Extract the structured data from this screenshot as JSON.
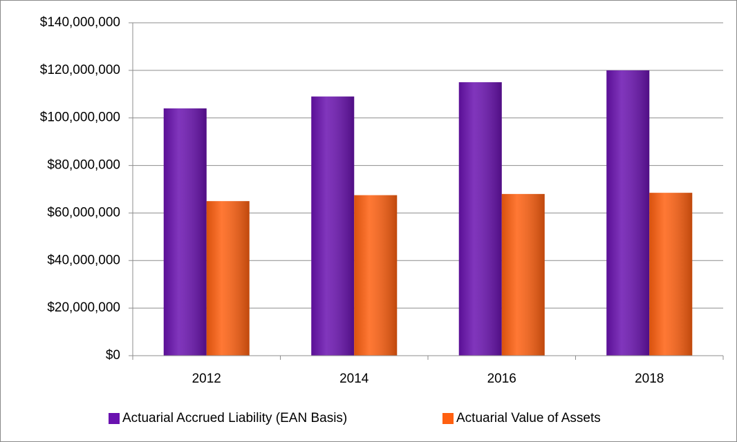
{
  "chart_data": {
    "type": "bar",
    "categories": [
      "2012",
      "2014",
      "2016",
      "2018"
    ],
    "series": [
      {
        "name": "Actuarial Accrued Liability (EAN Basis)",
        "color": "#6a12b0",
        "values": [
          104000000,
          109000000,
          115000000,
          120000000
        ]
      },
      {
        "name": "Actuarial Value of Assets",
        "color": "#ff6010",
        "values": [
          65000000,
          67500000,
          68000000,
          68500000
        ]
      }
    ],
    "ylim": [
      0,
      140000000
    ],
    "yticks": [
      {
        "value": 0,
        "label": "$0"
      },
      {
        "value": 20000000,
        "label": "$20,000,000"
      },
      {
        "value": 40000000,
        "label": "$40,000,000"
      },
      {
        "value": 60000000,
        "label": "$60,000,000"
      },
      {
        "value": 80000000,
        "label": "$80,000,000"
      },
      {
        "value": 100000000,
        "label": "$100,000,000"
      },
      {
        "value": 120000000,
        "label": "$120,000,000"
      },
      {
        "value": 140000000,
        "label": "$140,000,000"
      }
    ],
    "grid": true,
    "legend": "bottom"
  }
}
